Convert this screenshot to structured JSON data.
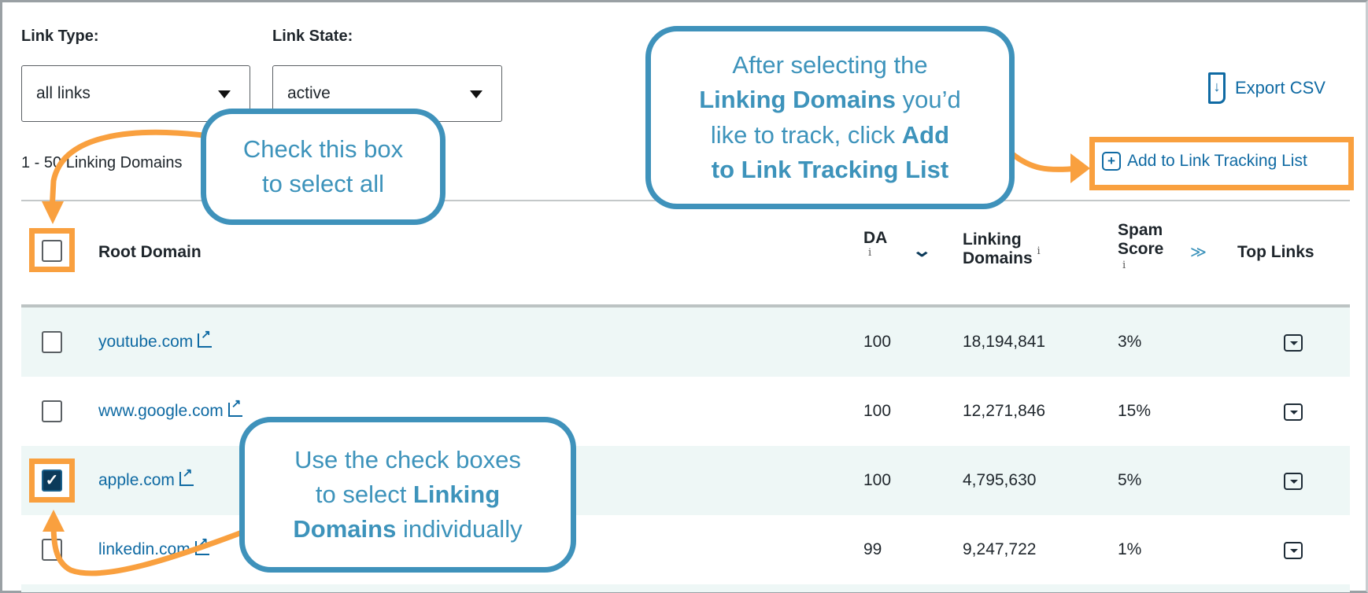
{
  "filters": {
    "link_type": {
      "label": "Link Type:",
      "value": "all links"
    },
    "link_state": {
      "label": "Link State:",
      "value": "active"
    }
  },
  "results_count": "1 - 50 Linking Domains",
  "actions": {
    "export_csv": "Export CSV",
    "add_to_tracking": "Add to Link Tracking List"
  },
  "table": {
    "headers": {
      "root_domain": "Root Domain",
      "da": "DA",
      "linking_domains_1": "Linking",
      "linking_domains_2": "Domains",
      "spam_1": "Spam",
      "spam_2": "Score",
      "top_links": "Top Links",
      "info": "i"
    },
    "rows": [
      {
        "domain": "youtube.com",
        "da": "100",
        "linking_domains": "18,194,841",
        "spam": "3%",
        "checked": false
      },
      {
        "domain": "www.google.com",
        "da": "100",
        "linking_domains": "12,271,846",
        "spam": "15%",
        "checked": false
      },
      {
        "domain": "apple.com",
        "da": "100",
        "linking_domains": "4,795,630",
        "spam": "5%",
        "checked": true
      },
      {
        "domain": "linkedin.com",
        "da": "99",
        "linking_domains": "9,247,722",
        "spam": "1%",
        "checked": false
      }
    ]
  },
  "callouts": {
    "select_all": {
      "l1": "Check this box",
      "l2": "to select all"
    },
    "add": {
      "l1": "After selecting the",
      "b1": "Linking Domains",
      "t1": " you’d",
      "l3": "like to track, click ",
      "b2": "Add",
      "b3": "to Link Tracking List"
    },
    "individual": {
      "l1": "Use the check boxes",
      "l2": "to select ",
      "b1": "Linking",
      "b2": "Domains",
      "l3": " individually"
    }
  },
  "colors": {
    "callout": "#3f92bb",
    "highlight": "#f9a03f",
    "link": "#0f6aa3",
    "row_alt": "#eef7f6",
    "checked": "#0b3a5a"
  },
  "check_mark": "✓"
}
